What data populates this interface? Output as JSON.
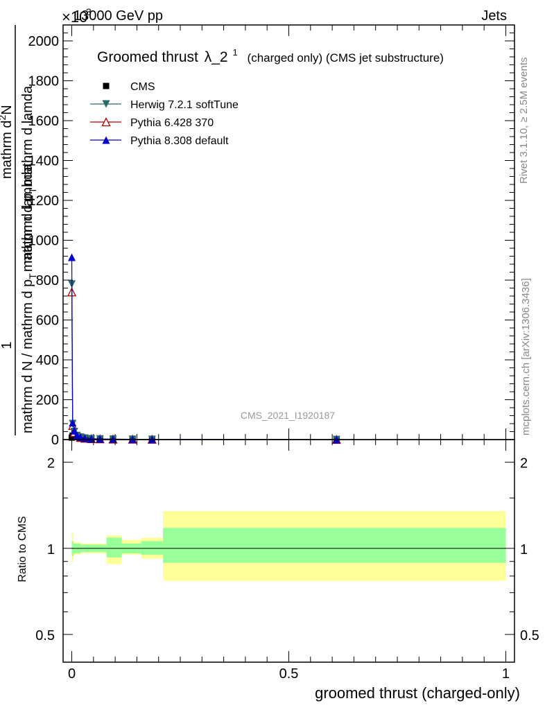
{
  "header": {
    "energy": "13000 GeV pp",
    "process": "Jets",
    "exponent": "×10",
    "exponent_power": "3"
  },
  "side_labels": {
    "rivet": "Rivet 3.1.10, ≥ 2.5M events",
    "mcplots": "mcplots.cern.ch [arXiv:1306.3436]"
  },
  "watermark": "CMS_2021_I1920187",
  "chart_data": [
    {
      "type": "line",
      "panel": "main",
      "title": "Groomed thrust λ_2",
      "title_main": "Groomed thrust",
      "title_symbol": "λ_2",
      "title_sup": "1",
      "subtitle": "(charged only) (CMS jet substructure)",
      "ylabel_lines": [
        "1",
        "mathrm d N / mathrm d p_T mathrm d lambda",
        "mathrm d²N",
        "mathrm d p_T mathrm d lamda"
      ],
      "ylabel_line1": "1",
      "ylabel_line2": "mathrm d N / mathrm d p",
      "ylabel_line2_sub": "T",
      "ylabel_line2_tail": "mathrm d lambda",
      "ylabel_line3": "mathrm d",
      "ylabel_line3_sup": "2",
      "ylabel_line3_tail": "N",
      "ylabel_line4": "mathrm d p",
      "ylabel_line4_sub": "T",
      "ylabel_line4_tail": "mathrm d lamda",
      "xlim": [
        -0.02,
        1.02
      ],
      "ylim": [
        0,
        2080
      ],
      "yticks": [
        0,
        200,
        400,
        600,
        800,
        1000,
        1200,
        1400,
        1600,
        1800,
        2000
      ],
      "ytick_labels": [
        "0",
        "200",
        "400",
        "600",
        "800",
        "1000",
        "1200",
        "1400",
        "1600",
        "1800",
        "2000"
      ],
      "y_scale_note": "×10^3",
      "legend": [
        {
          "name": "CMS",
          "marker": "square",
          "color": "#000000"
        },
        {
          "name": "Herwig 7.2.1 softTune",
          "marker": "triangle-down",
          "color": "#2a6868"
        },
        {
          "name": "Pythia 6.428 370",
          "marker": "triangle-up-open",
          "color": "#aa0000"
        },
        {
          "name": "Pythia 8.308 default",
          "marker": "triangle-up",
          "color": "#0000cc"
        }
      ],
      "series": [
        {
          "name": "CMS",
          "x": [
            0.0,
            0.002,
            0.006,
            0.012,
            0.02,
            0.03,
            0.045,
            0.065,
            0.095,
            0.14,
            0.185,
            0.61
          ],
          "y": [
            10,
            20,
            20,
            15,
            10,
            6,
            4,
            3,
            2,
            1.5,
            1,
            0.2
          ]
        },
        {
          "name": "Herwig 7.2.1 softTune",
          "x": [
            0.0,
            0.002,
            0.006,
            0.012,
            0.02,
            0.03,
            0.045,
            0.065,
            0.095,
            0.14,
            0.185,
            0.61
          ],
          "y": [
            780,
            80,
            40,
            20,
            12,
            7,
            4,
            3,
            2,
            1.5,
            1,
            0.2
          ]
        },
        {
          "name": "Pythia 6.428 370",
          "x": [
            0.0,
            0.002,
            0.006,
            0.012,
            0.02,
            0.03,
            0.045,
            0.065,
            0.095,
            0.14,
            0.185,
            0.61
          ],
          "y": [
            740,
            70,
            35,
            18,
            10,
            6,
            4,
            3,
            2,
            1.5,
            1,
            0.2
          ]
        },
        {
          "name": "Pythia 8.308 default",
          "x": [
            0.0,
            0.002,
            0.006,
            0.012,
            0.02,
            0.03,
            0.045,
            0.065,
            0.095,
            0.14,
            0.185,
            0.61
          ],
          "y": [
            915,
            85,
            45,
            22,
            12,
            7,
            4,
            3,
            2,
            1.5,
            1,
            0.2
          ]
        }
      ]
    },
    {
      "type": "area",
      "panel": "ratio",
      "ylabel": "Ratio to CMS",
      "xlabel": "groomed thrust (charged-only)",
      "xlim": [
        -0.02,
        1.02
      ],
      "ylim": [
        0.4,
        2.4
      ],
      "y_scale": "log",
      "yticks": [
        0.5,
        1,
        2
      ],
      "ytick_labels": [
        "0.5",
        "1",
        "2"
      ],
      "xticks": [
        0,
        0.5,
        1
      ],
      "xtick_labels": [
        "0",
        "0.5",
        "1"
      ],
      "reference": 1,
      "bins": [
        0,
        0.004,
        0.02,
        0.08,
        0.115,
        0.16,
        0.21,
        1.0
      ],
      "band_inner": [
        [
          0.94,
          1.06
        ],
        [
          0.96,
          1.04
        ],
        [
          0.97,
          1.03
        ],
        [
          0.93,
          1.09
        ],
        [
          0.96,
          1.04
        ],
        [
          0.95,
          1.06
        ],
        [
          0.89,
          1.18
        ]
      ],
      "band_outer": [
        [
          0.89,
          1.13
        ],
        [
          0.95,
          1.05
        ],
        [
          0.96,
          1.04
        ],
        [
          0.88,
          1.11
        ],
        [
          0.95,
          1.07
        ],
        [
          0.92,
          1.09
        ],
        [
          0.77,
          1.35
        ]
      ]
    }
  ]
}
